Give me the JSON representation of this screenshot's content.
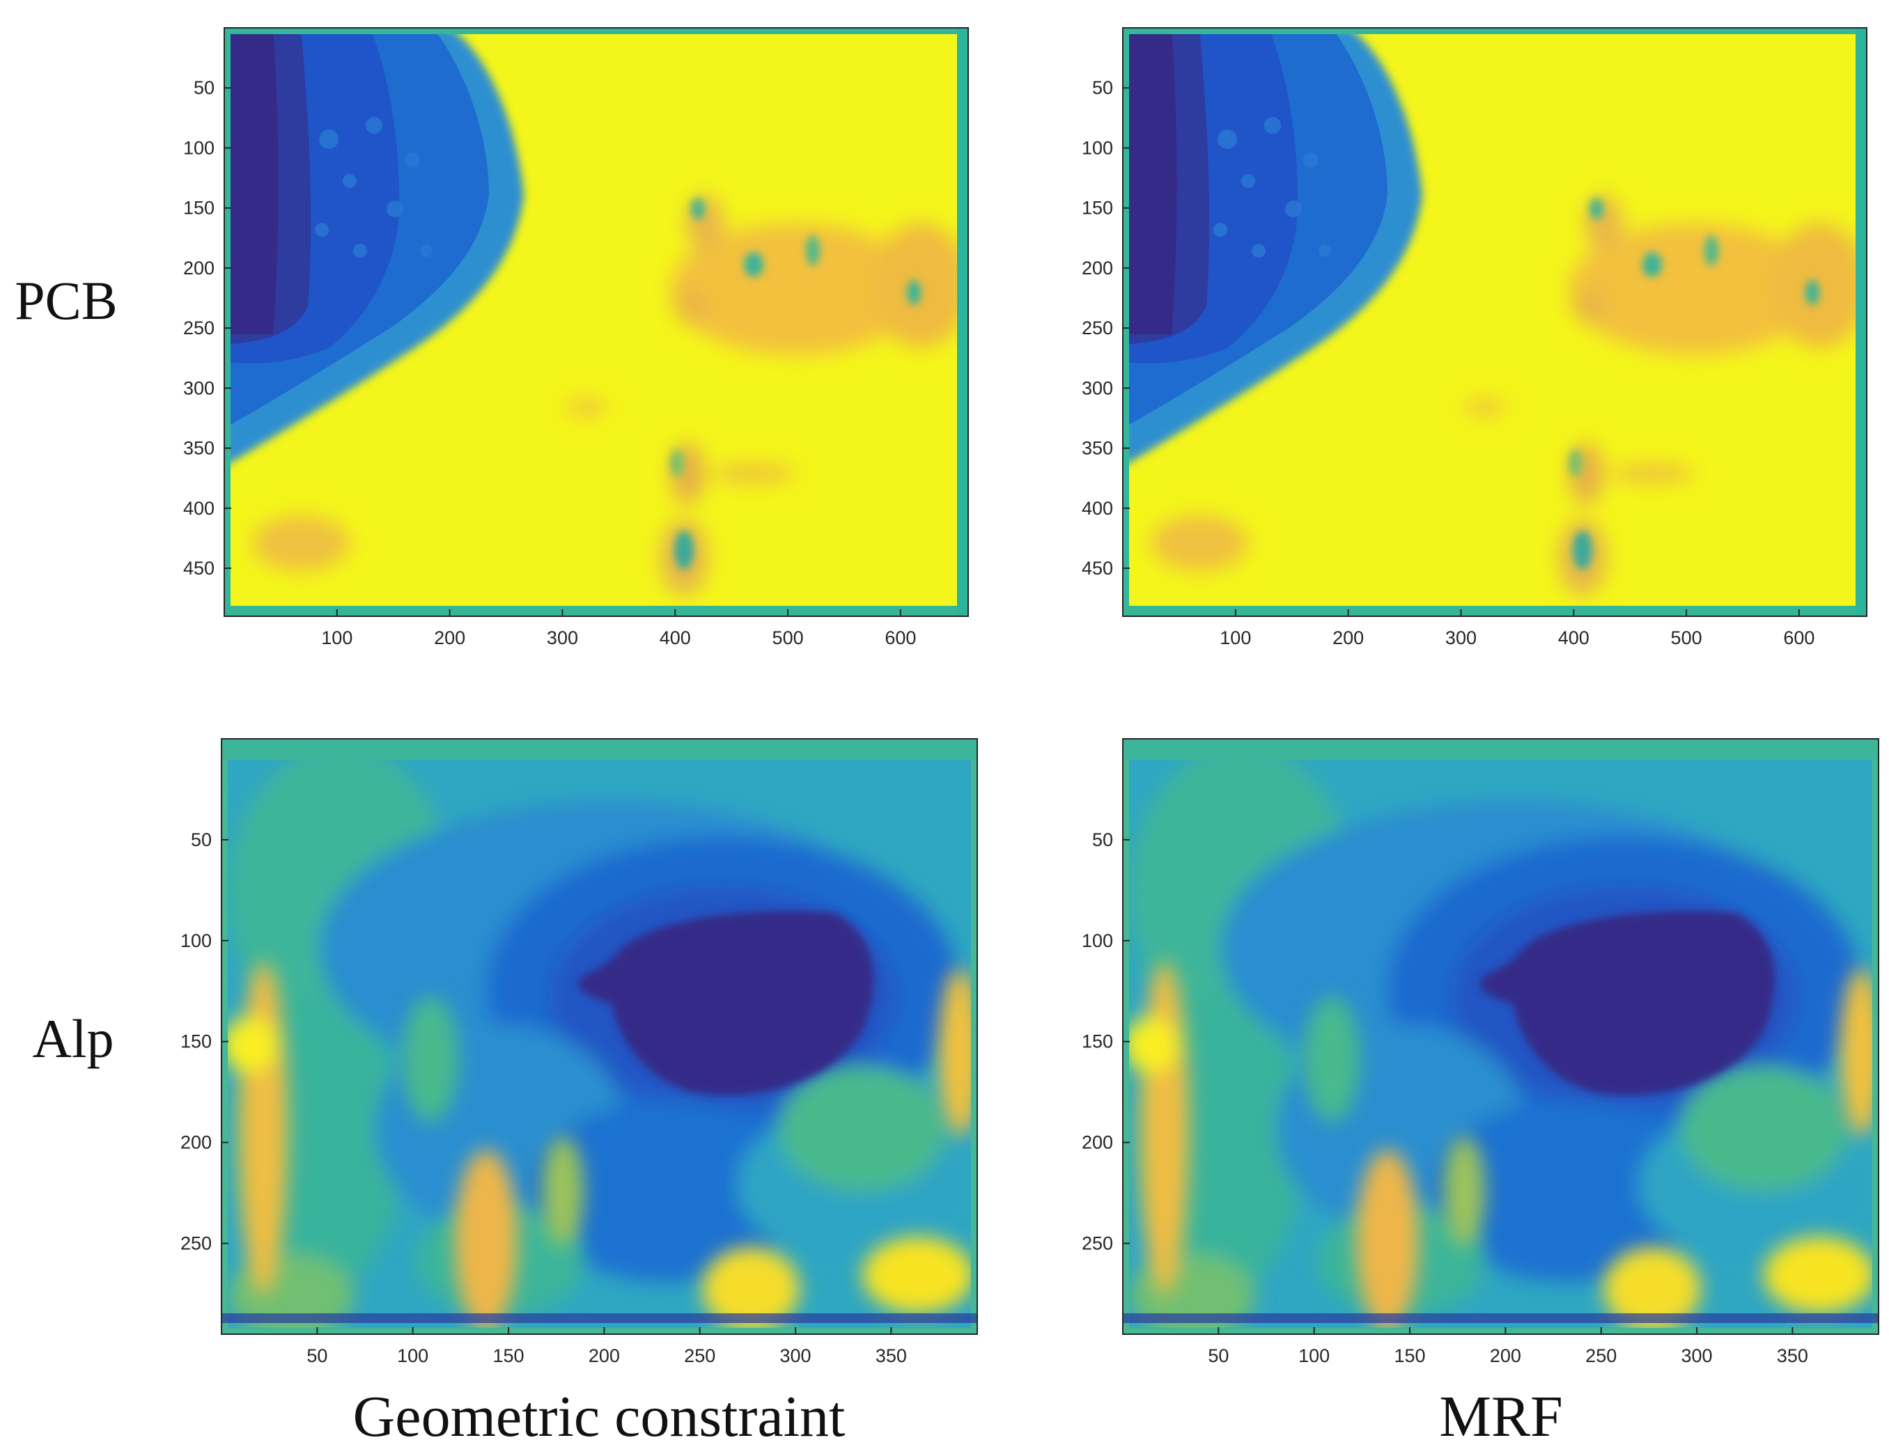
{
  "row_labels": [
    "PCB",
    "Alp"
  ],
  "column_titles": [
    "Geometric constraint",
    "MRF"
  ],
  "colormap": [
    "#352a87",
    "#1f61c8",
    "#1e9ac9",
    "#33b79a",
    "#8ec15a",
    "#f6bb3b",
    "#f9f90e"
  ],
  "chart_data": [
    {
      "type": "heatmap",
      "row": "PCB",
      "method": "Geometric constraint",
      "xlim": [
        0,
        660
      ],
      "ylim": [
        490,
        0
      ],
      "xticks": [
        100,
        200,
        300,
        400,
        500,
        600
      ],
      "yticks": [
        50,
        100,
        150,
        200,
        250,
        300,
        350,
        400,
        450
      ],
      "xticklabels": [
        "100",
        "200",
        "300",
        "400",
        "500",
        "600"
      ],
      "yticklabels": [
        "50",
        "100",
        "150",
        "200",
        "250",
        "300",
        "350",
        "400",
        "450"
      ]
    },
    {
      "type": "heatmap",
      "row": "PCB",
      "method": "MRF",
      "xlim": [
        0,
        660
      ],
      "ylim": [
        490,
        0
      ],
      "xticks": [
        100,
        200,
        300,
        400,
        500,
        600
      ],
      "yticks": [
        50,
        100,
        150,
        200,
        250,
        300,
        350,
        400,
        450
      ],
      "xticklabels": [
        "100",
        "200",
        "300",
        "400",
        "500",
        "600"
      ],
      "yticklabels": [
        "50",
        "100",
        "150",
        "200",
        "250",
        "300",
        "350",
        "400",
        "450"
      ]
    },
    {
      "type": "heatmap",
      "row": "Alp",
      "method": "Geometric constraint",
      "xlim": [
        0,
        395
      ],
      "ylim": [
        295,
        0
      ],
      "xticks": [
        50,
        100,
        150,
        200,
        250,
        300,
        350
      ],
      "yticks": [
        50,
        100,
        150,
        200,
        250
      ],
      "xticklabels": [
        "50",
        "100",
        "150",
        "200",
        "250",
        "300",
        "350"
      ],
      "yticklabels": [
        "50",
        "100",
        "150",
        "200",
        "250"
      ]
    },
    {
      "type": "heatmap",
      "row": "Alp",
      "method": "MRF",
      "xlim": [
        0,
        395
      ],
      "ylim": [
        295,
        0
      ],
      "xticks": [
        50,
        100,
        150,
        200,
        250,
        300,
        350
      ],
      "yticks": [
        50,
        100,
        150,
        200,
        250
      ],
      "xticklabels": [
        "50",
        "100",
        "150",
        "200",
        "250",
        "300",
        "350"
      ],
      "yticklabels": [
        "50",
        "100",
        "150",
        "200",
        "250"
      ]
    }
  ]
}
